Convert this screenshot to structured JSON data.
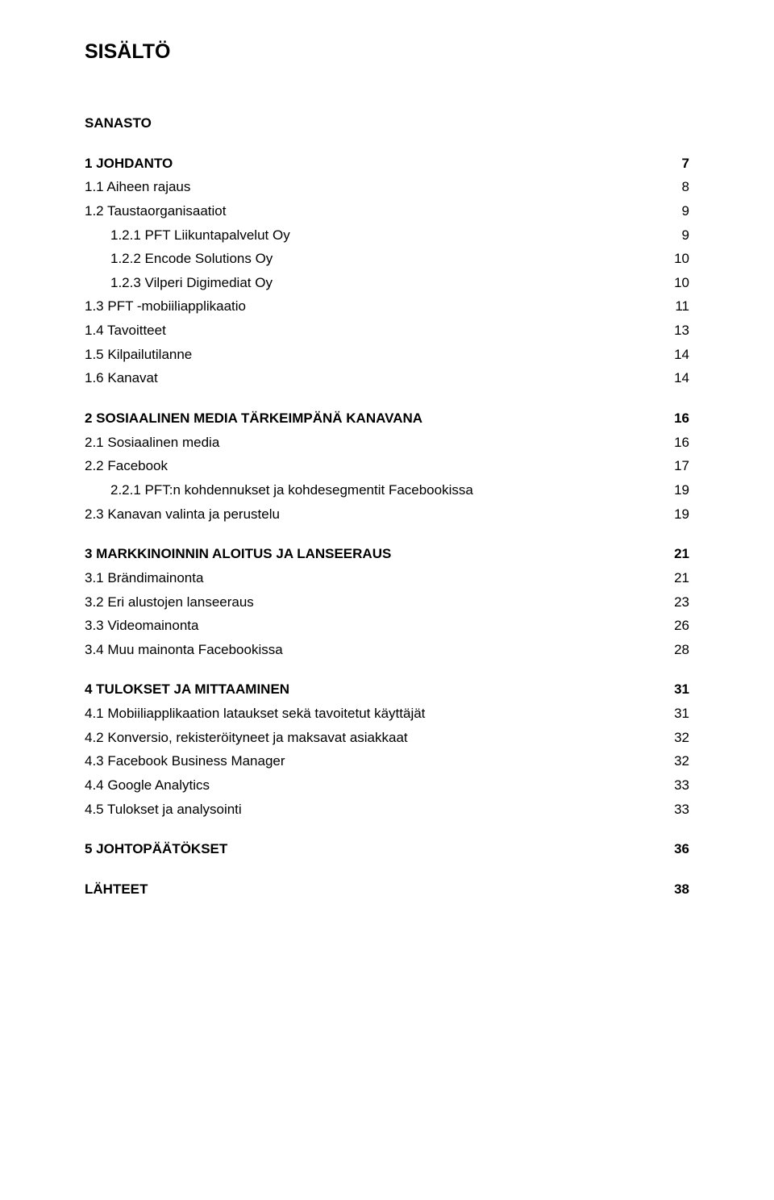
{
  "title": "SISÄLTÖ",
  "toc": [
    {
      "label": "SANASTO",
      "page": "",
      "level": 0,
      "bold": true,
      "gapAfter": true
    },
    {
      "label": "1 JOHDANTO",
      "page": "7",
      "level": 0,
      "bold": true
    },
    {
      "label": "1.1 Aiheen rajaus",
      "page": "8",
      "level": 1
    },
    {
      "label": "1.2 Taustaorganisaatiot",
      "page": "9",
      "level": 1
    },
    {
      "label": "1.2.1 PFT Liikuntapalvelut Oy",
      "page": "9",
      "level": 2
    },
    {
      "label": "1.2.2 Encode Solutions Oy",
      "page": "10",
      "level": 2
    },
    {
      "label": "1.2.3 Vilperi Digimediat Oy",
      "page": "10",
      "level": 2
    },
    {
      "label": "1.3 PFT -mobiiliapplikaatio",
      "page": "11",
      "level": 1
    },
    {
      "label": "1.4 Tavoitteet",
      "page": "13",
      "level": 1
    },
    {
      "label": "1.5 Kilpailutilanne",
      "page": "14",
      "level": 1
    },
    {
      "label": "1.6 Kanavat",
      "page": "14",
      "level": 1,
      "gapAfter": true
    },
    {
      "label": "2 SOSIAALINEN MEDIA TÄRKEIMPÄNÄ KANAVANA",
      "page": "16",
      "level": 0,
      "bold": true
    },
    {
      "label": "2.1 Sosiaalinen media",
      "page": "16",
      "level": 1
    },
    {
      "label": "2.2 Facebook",
      "page": "17",
      "level": 1
    },
    {
      "label": "2.2.1 PFT:n kohdennukset ja kohdesegmentit Facebookissa",
      "page": "19",
      "level": 2
    },
    {
      "label": "2.3 Kanavan valinta ja perustelu",
      "page": "19",
      "level": 1,
      "gapAfter": true
    },
    {
      "label": "3 MARKKINOINNIN ALOITUS JA LANSEERAUS",
      "page": "21",
      "level": 0,
      "bold": true
    },
    {
      "label": "3.1 Brändimainonta",
      "page": "21",
      "level": 1
    },
    {
      "label": "3.2 Eri alustojen lanseeraus",
      "page": "23",
      "level": 1
    },
    {
      "label": "3.3 Videomainonta",
      "page": "26",
      "level": 1
    },
    {
      "label": "3.4 Muu mainonta Facebookissa",
      "page": "28",
      "level": 1,
      "gapAfter": true
    },
    {
      "label": "4 TULOKSET JA MITTAAMINEN",
      "page": "31",
      "level": 0,
      "bold": true
    },
    {
      "label": "4.1 Mobiiliapplikaation lataukset sekä tavoitetut käyttäjät",
      "page": "31",
      "level": 1
    },
    {
      "label": "4.2 Konversio, rekisteröityneet ja maksavat asiakkaat",
      "page": "32",
      "level": 1
    },
    {
      "label": "4.3 Facebook Business Manager",
      "page": "32",
      "level": 1
    },
    {
      "label": "4.4 Google Analytics",
      "page": "33",
      "level": 1
    },
    {
      "label": "4.5 Tulokset ja analysointi",
      "page": "33",
      "level": 1,
      "gapAfter": true
    },
    {
      "label": "5 JOHTOPÄÄTÖKSET",
      "page": "36",
      "level": 0,
      "bold": true,
      "gapAfter": true
    },
    {
      "label": "LÄHTEET",
      "page": "38",
      "level": 0,
      "bold": true
    }
  ]
}
